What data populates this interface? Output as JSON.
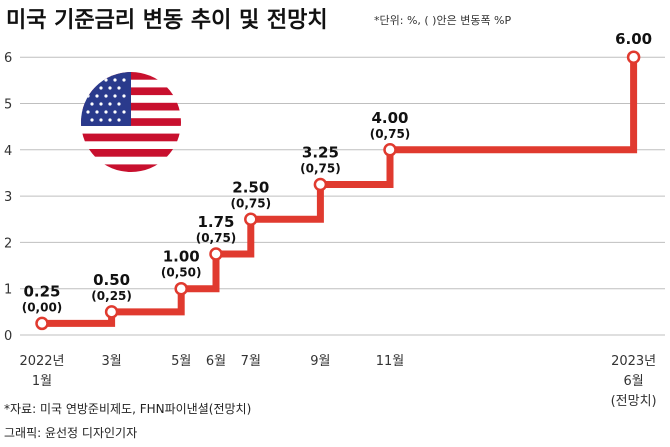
{
  "chart_data": {
    "type": "line",
    "title": "미국 기준금리 변동 추이 및 전망치",
    "note": "*단위: %, ( )안은 변동폭 %P",
    "ylim": [
      0,
      6.5
    ],
    "yticks": [
      "0",
      "1",
      "2",
      "3",
      "4",
      "5",
      "6"
    ],
    "step": true,
    "points": [
      {
        "x": 0,
        "value": 0.25,
        "label": "0.25",
        "change": "(0,00)",
        "tick": [
          "2022년",
          "1월"
        ]
      },
      {
        "x": 2,
        "value": 0.5,
        "label": "0.50",
        "change": "(0,25)",
        "tick": [
          "3월"
        ]
      },
      {
        "x": 4,
        "value": 1.0,
        "label": "1.00",
        "change": "(0,50)",
        "tick": [
          "5월"
        ]
      },
      {
        "x": 5,
        "value": 1.75,
        "label": "1.75",
        "change": "(0,75)",
        "tick": [
          "6월"
        ]
      },
      {
        "x": 6,
        "value": 2.5,
        "label": "2.50",
        "change": "(0,75)",
        "tick": [
          "7월"
        ]
      },
      {
        "x": 8,
        "value": 3.25,
        "label": "3.25",
        "change": "(0,75)",
        "tick": [
          "9월"
        ]
      },
      {
        "x": 10,
        "value": 4.0,
        "label": "4.00",
        "change": "(0,75)",
        "tick": [
          "11월"
        ]
      },
      {
        "x": 17,
        "value": 6.0,
        "label": "6.00",
        "change": "",
        "tick": [
          "2023년",
          "6월",
          "(전망치)"
        ]
      }
    ],
    "line_color": "#e03a2f"
  },
  "footer": {
    "source": "*자료: 미국 연방준비제도, FHN파이낸셜(전망치)",
    "credit": "그래픽: 윤선정 디자인기자"
  },
  "flag_icon": "us-flag-icon"
}
